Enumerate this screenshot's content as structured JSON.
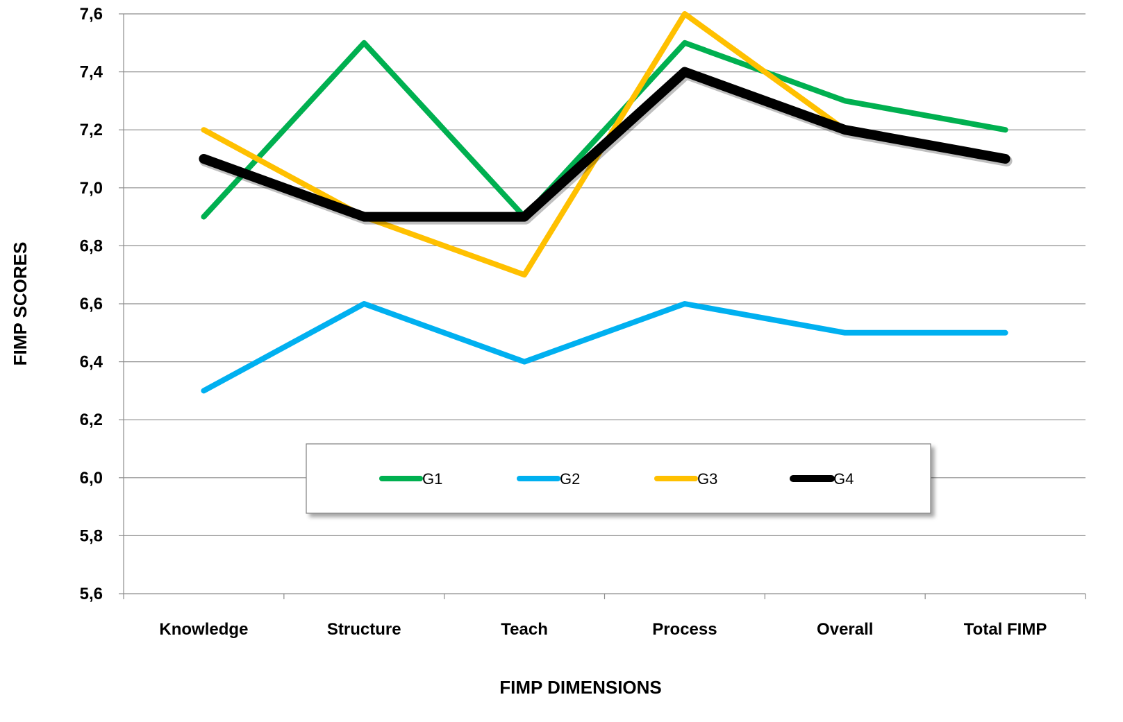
{
  "chart_data": {
    "type": "line",
    "title": "",
    "xlabel": "FIMP DIMENSIONS",
    "ylabel": "FIMP SCORES",
    "categories": [
      "Knowledge",
      "Structure",
      "Teach",
      "Process",
      "Overall",
      "Total FIMP"
    ],
    "ylim": [
      5.6,
      7.6
    ],
    "yticks": [
      5.6,
      5.8,
      6.0,
      6.2,
      6.4,
      6.6,
      6.8,
      7.0,
      7.2,
      7.4,
      7.6
    ],
    "ytick_labels": [
      "5,6",
      "5,8",
      "6,0",
      "6,2",
      "6,4",
      "6,6",
      "6,8",
      "7,0",
      "7,2",
      "7,4",
      "7,6"
    ],
    "grid": true,
    "legend_position": "lower-center",
    "series": [
      {
        "name": "G1",
        "color": "#00B050",
        "values": [
          6.9,
          7.5,
          6.9,
          7.5,
          7.3,
          7.2
        ]
      },
      {
        "name": "G2",
        "color": "#00B0F0",
        "values": [
          6.3,
          6.6,
          6.4,
          6.6,
          6.5,
          6.5
        ]
      },
      {
        "name": "G3",
        "color": "#FFC000",
        "values": [
          7.2,
          6.9,
          6.7,
          7.6,
          7.2,
          7.1
        ]
      },
      {
        "name": "G4",
        "color": "#000000",
        "values": [
          7.1,
          6.9,
          6.9,
          7.4,
          7.2,
          7.1
        ]
      }
    ]
  }
}
